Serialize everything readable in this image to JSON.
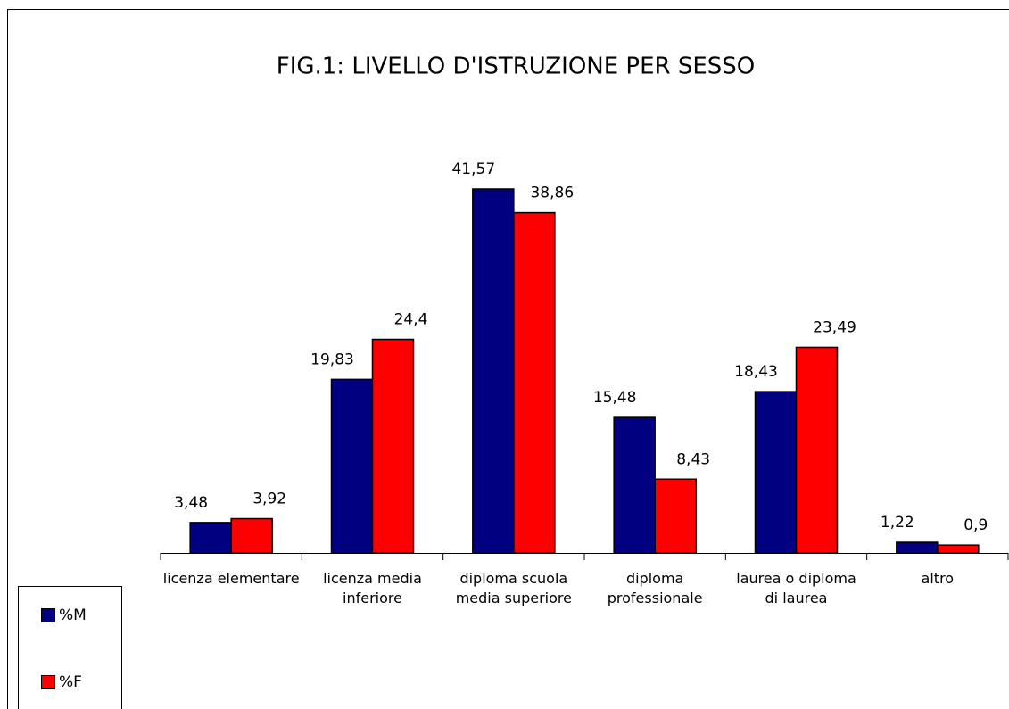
{
  "chart_data": {
    "type": "bar",
    "title": "FIG.1: LIVELLO D'ISTRUZIONE PER SESSO",
    "categories": [
      "licenza elementare",
      "licenza media inferiore",
      "diploma scuola media superiore",
      "diploma professionale",
      "laurea o diploma di laurea",
      "altro"
    ],
    "series": [
      {
        "name": "%M",
        "color": "#000080",
        "values": [
          3.48,
          19.83,
          41.57,
          15.48,
          18.43,
          1.22
        ],
        "value_labels": [
          "3,48",
          "19,83",
          "41,57",
          "15,48",
          "18,43",
          "1,22"
        ]
      },
      {
        "name": "%F",
        "color": "#ff0000",
        "values": [
          3.92,
          24.4,
          38.86,
          8.43,
          23.49,
          0.9
        ],
        "value_labels": [
          "3,92",
          "24,4",
          "38,86",
          "8,43",
          "23,49",
          "0,9"
        ]
      }
    ]
  }
}
